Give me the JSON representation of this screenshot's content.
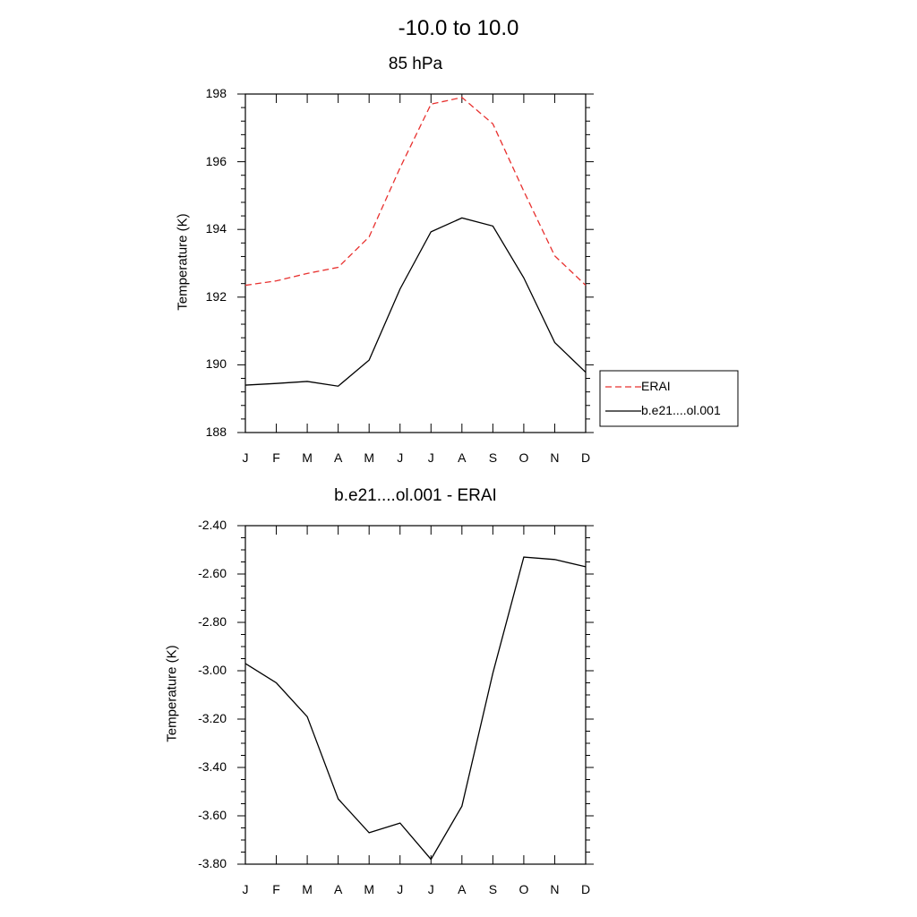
{
  "title": "-10.0 to  10.0",
  "chart_data": [
    {
      "type": "line",
      "title": "85 hPa",
      "ylabel": "Temperature (K)",
      "xlabel": "",
      "categories": [
        "J",
        "F",
        "M",
        "A",
        "M",
        "J",
        "J",
        "A",
        "S",
        "O",
        "N",
        "D"
      ],
      "ylim": [
        188,
        198
      ],
      "yticks": [
        "188",
        "190",
        "192",
        "194",
        "196",
        "198"
      ],
      "legend": "right",
      "series": [
        {
          "name": "ERAI",
          "color": "#e8312f",
          "style": "dashed",
          "values": [
            192.35,
            192.48,
            192.7,
            192.88,
            193.78,
            195.82,
            197.7,
            197.9,
            197.12,
            195.13,
            193.22,
            192.35
          ]
        },
        {
          "name": "b.e21....ol.001",
          "color": "#000000",
          "style": "solid",
          "values": [
            189.4,
            189.45,
            189.51,
            189.37,
            190.14,
            192.24,
            193.93,
            194.34,
            194.1,
            192.57,
            190.66,
            189.78
          ]
        }
      ]
    },
    {
      "type": "line",
      "title": "b.e21....ol.001 - ERAI",
      "ylabel": "Temperature (K)",
      "xlabel": "",
      "categories": [
        "J",
        "F",
        "M",
        "A",
        "M",
        "J",
        "J",
        "A",
        "S",
        "O",
        "N",
        "D"
      ],
      "ylim": [
        -3.8,
        -2.4
      ],
      "yticks": [
        "-3.80",
        "-3.60",
        "-3.40",
        "-3.20",
        "-3.00",
        "-2.80",
        "-2.60",
        "-2.40"
      ],
      "series": [
        {
          "color": "#000000",
          "style": "solid",
          "values": [
            -2.97,
            -3.05,
            -3.19,
            -3.53,
            -3.67,
            -3.63,
            -3.78,
            -3.56,
            -3.01,
            -2.53,
            -2.54,
            -2.57
          ]
        }
      ]
    }
  ]
}
